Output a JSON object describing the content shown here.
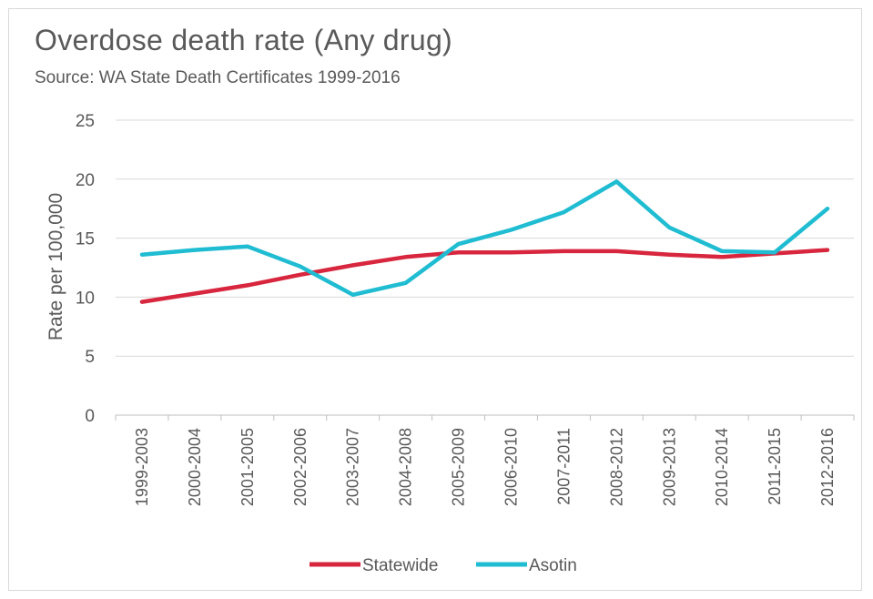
{
  "chart_data": {
    "type": "line",
    "title": "Overdose death rate (Any drug)",
    "subtitle": "Source: WA State Death Certificates 1999-2016",
    "xlabel": "",
    "ylabel": "Rate per 100,000",
    "ylim": [
      0,
      25
    ],
    "yticks": [
      0,
      5,
      10,
      15,
      20,
      25
    ],
    "grid": true,
    "legend_position": "bottom",
    "categories": [
      "1999-2003",
      "2000-2004",
      "2001-2005",
      "2002-2006",
      "2003-2007",
      "2004-2008",
      "2005-2009",
      "2006-2010",
      "2007-2011",
      "2008-2012",
      "2009-2013",
      "2010-2014",
      "2011-2015",
      "2012-2016"
    ],
    "series": [
      {
        "name": "Statewide",
        "color": "#d7263d",
        "values": [
          9.6,
          10.3,
          11.0,
          11.9,
          12.7,
          13.4,
          13.8,
          13.8,
          13.9,
          13.9,
          13.6,
          13.4,
          13.7,
          14.0
        ]
      },
      {
        "name": "Asotin",
        "color": "#1fbcd2",
        "values": [
          13.6,
          14.0,
          14.3,
          12.6,
          10.2,
          11.2,
          14.5,
          15.7,
          17.2,
          19.8,
          15.9,
          13.9,
          13.8,
          17.5
        ]
      }
    ]
  }
}
